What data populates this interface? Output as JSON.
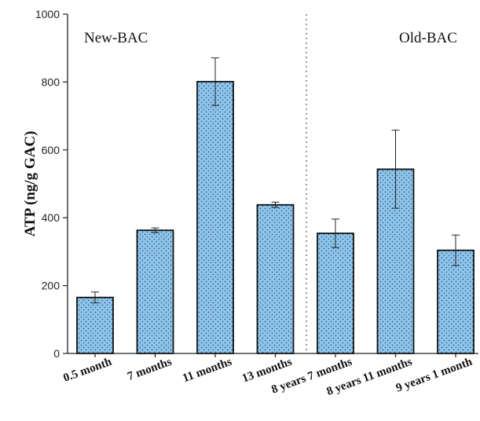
{
  "chart_data": {
    "type": "bar",
    "ylabel": "ATP (ng/g GAC)",
    "xlabel": "",
    "ylim": [
      0,
      1000
    ],
    "yticks": [
      0,
      200,
      400,
      600,
      800,
      1000
    ],
    "categories": [
      "0.5 month",
      "7 months",
      "11 months",
      "13 months",
      "8 years 7 months",
      "8 years 11 months",
      "9 years 1 month"
    ],
    "values": [
      165,
      363,
      801,
      438,
      354,
      543,
      304
    ],
    "errors": [
      16,
      7,
      70,
      8,
      42,
      115,
      45
    ],
    "groups": [
      {
        "label": "New-BAC",
        "categories": [
          "0.5 month",
          "7 months",
          "11 months",
          "13 months"
        ]
      },
      {
        "label": "Old-BAC",
        "categories": [
          "8 years 7 months",
          "8 years 11 months",
          "9 years 1 month"
        ]
      }
    ],
    "bar_color": "#8dc3ea",
    "bar_pattern": "dotted",
    "grid": false
  }
}
